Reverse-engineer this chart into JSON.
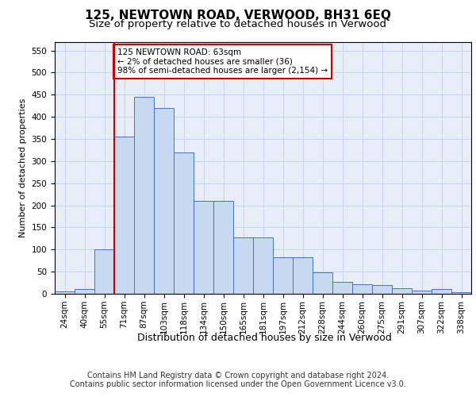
{
  "title": "125, NEWTOWN ROAD, VERWOOD, BH31 6EQ",
  "subtitle": "Size of property relative to detached houses in Verwood",
  "xlabel": "Distribution of detached houses by size in Verwood",
  "ylabel": "Number of detached properties",
  "bar_labels": [
    "24sqm",
    "40sqm",
    "55sqm",
    "71sqm",
    "87sqm",
    "103sqm",
    "118sqm",
    "134sqm",
    "150sqm",
    "165sqm",
    "181sqm",
    "197sqm",
    "212sqm",
    "228sqm",
    "244sqm",
    "260sqm",
    "275sqm",
    "291sqm",
    "307sqm",
    "322sqm",
    "338sqm"
  ],
  "bar_values": [
    5,
    10,
    100,
    355,
    445,
    420,
    320,
    210,
    210,
    127,
    127,
    83,
    83,
    48,
    27,
    22,
    20,
    13,
    8,
    10,
    3
  ],
  "bar_color": "#c6d9f0",
  "bar_edge_color": "#4472c4",
  "vline_x_idx": 2,
  "vline_color": "#cc0000",
  "annotation_text": "125 NEWTOWN ROAD: 63sqm\n← 2% of detached houses are smaller (36)\n98% of semi-detached houses are larger (2,154) →",
  "annotation_box_color": "#ffffff",
  "annotation_box_edge_color": "#cc0000",
  "grid_color": "#c8d4e8",
  "background_color": "#e8eef8",
  "ylim": [
    0,
    570
  ],
  "yticks": [
    0,
    50,
    100,
    150,
    200,
    250,
    300,
    350,
    400,
    450,
    500,
    550
  ],
  "footer_line1": "Contains HM Land Registry data © Crown copyright and database right 2024.",
  "footer_line2": "Contains public sector information licensed under the Open Government Licence v3.0.",
  "title_fontsize": 11,
  "subtitle_fontsize": 9.5,
  "xlabel_fontsize": 9,
  "ylabel_fontsize": 8,
  "tick_fontsize": 7.5,
  "footer_fontsize": 7,
  "annot_fontsize": 7.5
}
